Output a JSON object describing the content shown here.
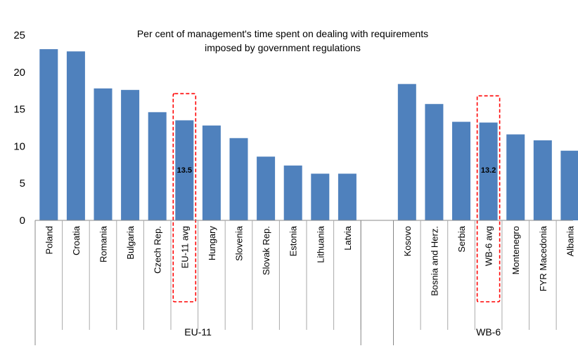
{
  "chart_data": {
    "type": "bar",
    "title_lines": [
      "Per cent of management's time spent on dealing with requirements",
      "imposed by government regulations"
    ],
    "ylim": [
      0,
      25
    ],
    "yticks": [
      "0",
      "5",
      "10",
      "15",
      "20",
      "25"
    ],
    "grid": false,
    "color": "#4f81bd",
    "highlight_color": "#ff0000",
    "groups": [
      {
        "name": "EU-11",
        "categories": [
          "Poland",
          "Croatia",
          "Romania",
          "Bulgaria",
          "Czech Rep.",
          "EU-11 avg",
          "Hungary",
          "Slovenia",
          "Slovak Rep.",
          "Estonia",
          "Lithuania",
          "Latvia"
        ],
        "values": [
          23.1,
          22.8,
          17.8,
          17.6,
          14.6,
          13.5,
          12.8,
          11.1,
          8.6,
          7.4,
          6.3,
          6.3
        ],
        "highlight": {
          "category": "EU-11 avg",
          "label": "13.5"
        }
      },
      {
        "name": "WB-6",
        "categories": [
          "Kosovo",
          "Bosnia and Herz.",
          "Serbia",
          "WB-6 avg",
          "Montenegro",
          "FYR Macedonia",
          "Albania"
        ],
        "values": [
          18.4,
          15.7,
          13.3,
          13.2,
          11.6,
          10.8,
          9.4
        ],
        "highlight": {
          "category": "WB-6 avg",
          "label": "13.2"
        }
      }
    ]
  }
}
